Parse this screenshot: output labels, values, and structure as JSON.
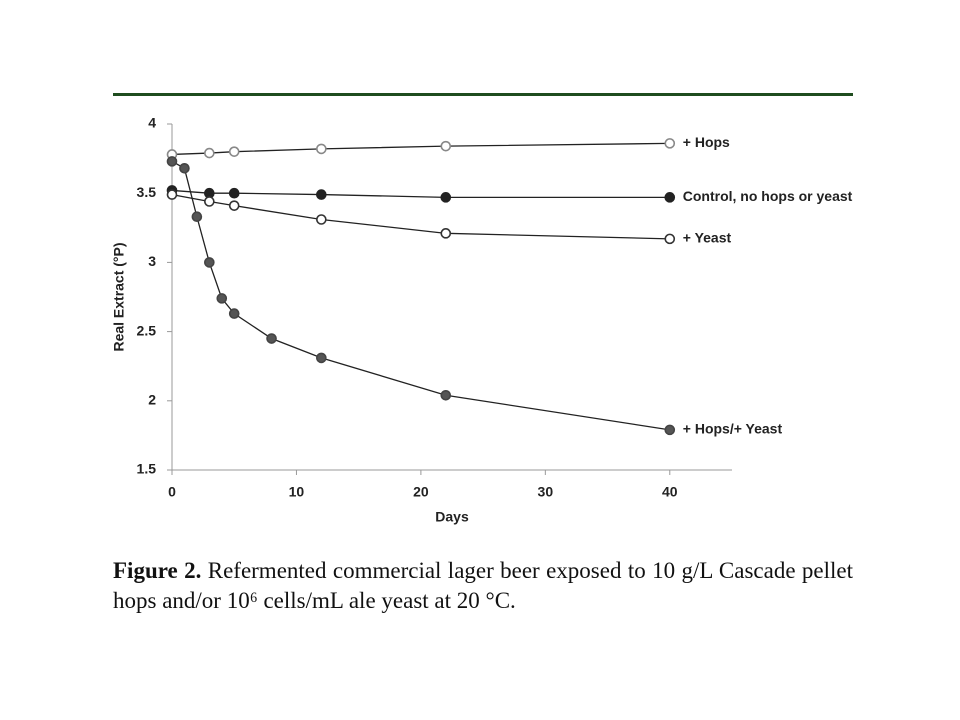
{
  "chart_data": {
    "type": "line",
    "xlabel": "Days",
    "ylabel": "Real Extract (°P)",
    "xlim": [
      0,
      45
    ],
    "xticks": [
      0,
      10,
      20,
      30,
      40
    ],
    "ylim": [
      1.5,
      4
    ],
    "yticks": [
      1.5,
      2,
      2.5,
      3,
      3.5,
      4
    ],
    "series": [
      {
        "name": "+ Hops",
        "color": "#888888",
        "marker_fill": "#ffffff",
        "x": [
          0,
          3,
          5,
          12,
          22,
          40
        ],
        "values": [
          3.78,
          3.79,
          3.8,
          3.82,
          3.84,
          3.86
        ]
      },
      {
        "name": "Control, no hops or yeast",
        "color": "#222222",
        "marker_fill": "#222222",
        "x": [
          0,
          3,
          5,
          12,
          22,
          40
        ],
        "values": [
          3.52,
          3.5,
          3.5,
          3.49,
          3.47,
          3.47
        ]
      },
      {
        "name": "+ Yeast",
        "color": "#333333",
        "marker_fill": "#ffffff",
        "x": [
          0,
          3,
          5,
          12,
          22,
          40
        ],
        "values": [
          3.49,
          3.44,
          3.41,
          3.31,
          3.21,
          3.17
        ]
      },
      {
        "name": "+ Hops/+ Yeast",
        "color": "#444444",
        "marker_fill": "#555555",
        "x": [
          0,
          1,
          2,
          3,
          4,
          5,
          8,
          12,
          22,
          40
        ],
        "values": [
          3.73,
          3.68,
          3.33,
          3.0,
          2.74,
          2.63,
          2.45,
          2.31,
          2.04,
          1.79
        ]
      }
    ],
    "caption_label": "Figure 2.",
    "caption": "Refermented commercial lager beer exposed to 10 g/L Cascade pellet hops and/or 10⁶ cells/mL ale yeast at 20 °C."
  }
}
